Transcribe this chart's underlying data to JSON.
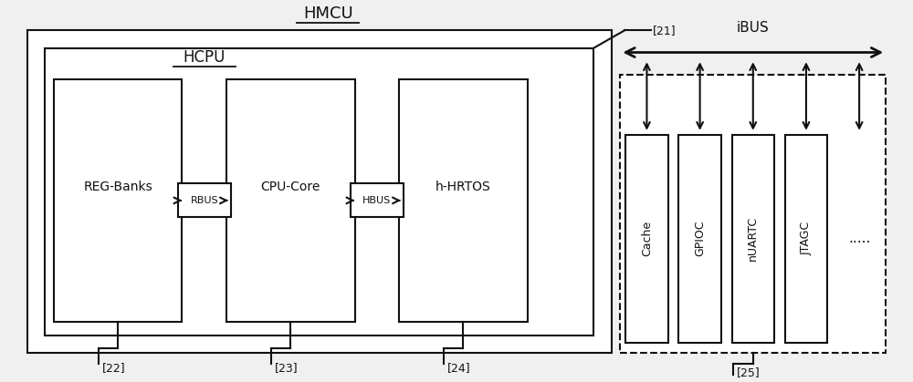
{
  "title": "HMCU",
  "hcpu_label": "HCPU",
  "ref21": "[21]",
  "ref22": "[22]",
  "ref23": "[23]",
  "ref24": "[24]",
  "ref25": "[25]",
  "ibus_label": "iBUS",
  "rbus_label": "RBUS",
  "hbus_label": "HBUS",
  "peripheral_labels": [
    "Cache",
    "GPIOC",
    "nUARTC",
    "JTAGC",
    "....."
  ],
  "bg_color": "#f0f0f0",
  "box_color": "#ffffff",
  "line_color": "#111111"
}
